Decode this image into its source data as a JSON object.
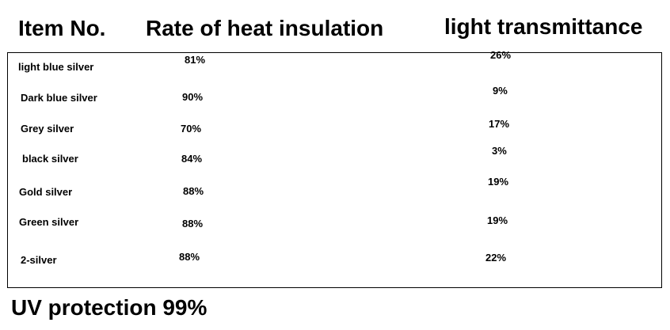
{
  "headers": {
    "item": "Item No.",
    "heat": "Rate of heat insulation",
    "light": "light transmittance"
  },
  "rows": [
    {
      "name": "light blue silver",
      "heat": "81%",
      "light": "26%"
    },
    {
      "name": "Dark blue silver",
      "heat": "90%",
      "light": "9%"
    },
    {
      "name": "Grey silver",
      "heat": "70%",
      "light": "17%"
    },
    {
      "name": "black silver",
      "heat": "84%",
      "light": "3%"
    },
    {
      "name": "Gold silver",
      "heat": "88%",
      "light": "19%"
    },
    {
      "name": "Green silver",
      "heat": "88%",
      "light": "19%"
    },
    {
      "name": "2-silver",
      "heat": "88%",
      "light": "22%"
    }
  ],
  "footer": "UV protection 99%"
}
